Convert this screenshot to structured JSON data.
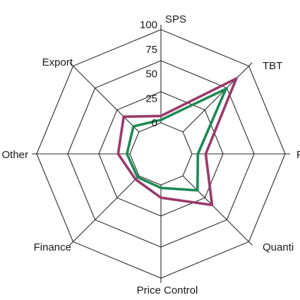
{
  "chart_data": {
    "type": "radar",
    "categories": [
      "SPS",
      "TBT",
      "Pre-shipment",
      "Quantity Control",
      "Price Control",
      "Finance",
      "Other",
      "Export"
    ],
    "axis_labels_visible": [
      "SPS",
      "TBT",
      "P",
      "Quanti",
      "Price Control",
      "Finance",
      "Other",
      "Export"
    ],
    "r_ticks": [
      0,
      25,
      50,
      75,
      100
    ],
    "r_range": [
      0,
      100
    ],
    "grid": true,
    "legend": "none",
    "series": [
      {
        "color": "#9b3a6a",
        "values": [
          7,
          77,
          14,
          42,
          13,
          5,
          12,
          22
        ]
      },
      {
        "color": "#1e8a55",
        "values": [
          3,
          62,
          6,
          21,
          3,
          2,
          3,
          8
        ]
      }
    ]
  }
}
